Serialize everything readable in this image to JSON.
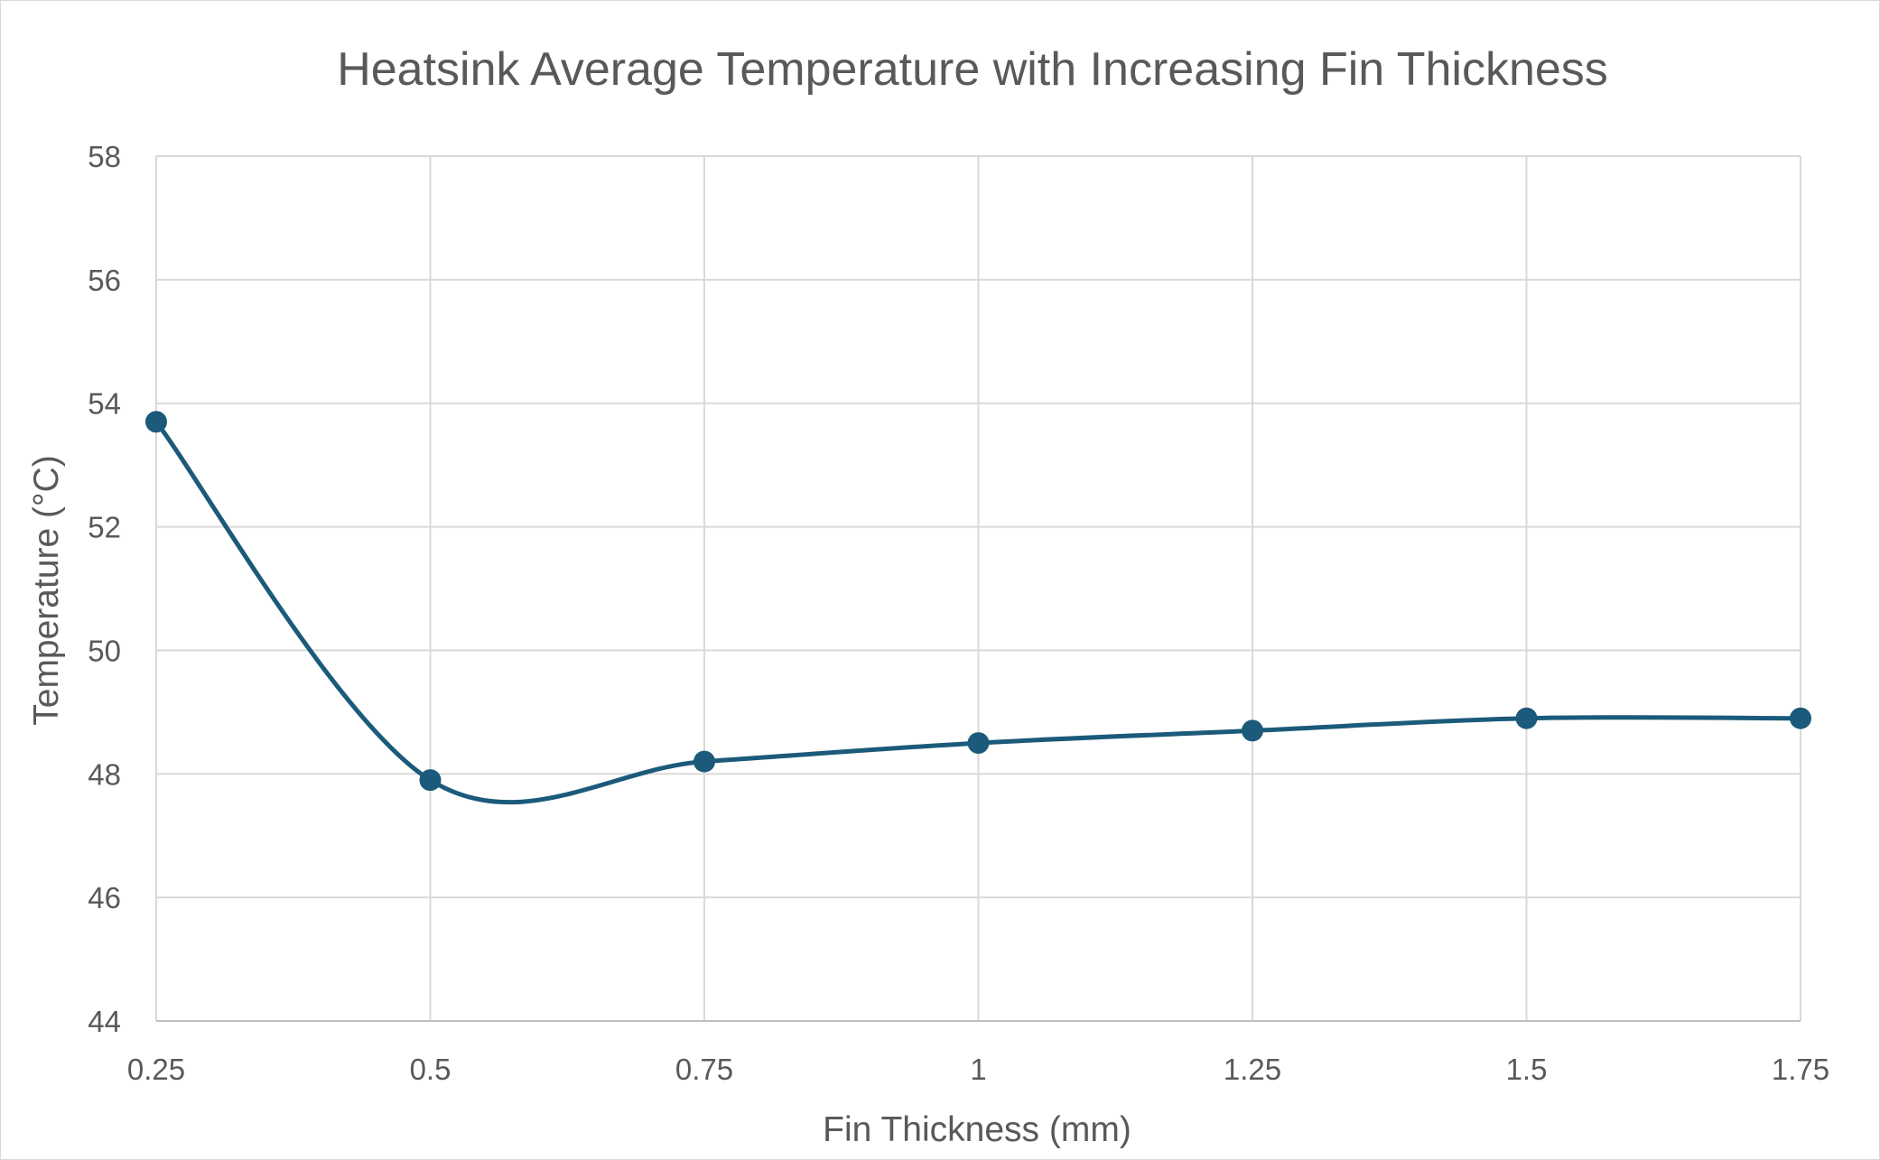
{
  "chart_data": {
    "type": "line",
    "title": "Heatsink Average Temperature with Increasing Fin Thickness",
    "xlabel": "Fin Thickness (mm)",
    "ylabel": "Temperature (°C)",
    "x": [
      0.25,
      0.5,
      0.75,
      1,
      1.25,
      1.5,
      1.75
    ],
    "x_tick_labels": [
      "0.25",
      "0.5",
      "0.75",
      "1",
      "1.25",
      "1.5",
      "1.75"
    ],
    "y_ticks": [
      44,
      46,
      48,
      50,
      52,
      54,
      56,
      58
    ],
    "ylim": [
      44,
      58
    ],
    "series": [
      {
        "values": [
          53.7,
          47.9,
          48.2,
          48.5,
          48.7,
          48.9,
          48.9
        ],
        "color": "#1b5a7a",
        "smooth": true,
        "markers": true
      }
    ],
    "grid": true,
    "legend": "none"
  }
}
